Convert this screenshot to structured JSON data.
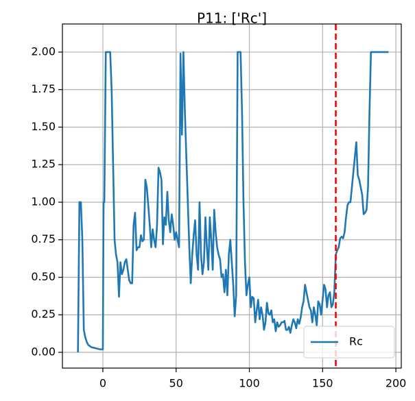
{
  "chart_data": {
    "type": "line",
    "title": "P11: ['Rc']",
    "x": [
      -17,
      -16,
      -15,
      -14,
      -13,
      -12,
      -11,
      -10,
      -8,
      -6,
      -4,
      -2,
      0,
      0.5,
      1,
      2,
      5,
      6,
      7,
      8,
      9,
      10,
      11,
      12,
      13,
      14,
      15,
      16,
      17,
      18,
      19,
      20,
      21,
      22,
      23,
      24,
      25,
      26,
      27,
      28,
      29,
      30,
      31,
      32,
      33,
      34,
      35,
      36,
      37,
      38,
      39,
      40,
      41,
      42,
      43,
      44,
      45,
      46,
      47,
      48,
      49,
      50,
      51,
      52,
      53,
      54,
      55,
      56,
      57,
      58,
      59,
      60,
      61,
      62,
      63,
      64,
      65,
      66,
      67,
      68,
      69,
      70,
      71,
      72,
      73,
      74,
      75,
      76,
      77,
      78,
      79,
      80,
      81,
      82,
      83,
      84,
      85,
      86,
      87,
      88,
      89,
      90,
      91,
      92,
      94,
      95,
      96,
      97,
      98,
      99,
      100,
      101,
      102,
      103,
      104,
      105,
      106,
      107,
      108,
      109,
      110,
      111,
      112,
      113,
      114,
      115,
      116,
      117,
      118,
      119,
      120,
      121,
      122,
      123,
      124,
      125,
      126,
      127,
      128,
      129,
      130,
      131,
      132,
      133,
      134,
      135,
      136,
      137,
      138,
      139,
      140,
      141,
      142,
      143,
      144,
      145,
      146,
      147,
      148,
      149,
      150,
      151,
      152,
      153,
      154,
      155,
      156,
      157,
      158,
      159,
      160,
      161,
      162,
      163,
      164,
      165,
      166,
      167,
      168,
      169,
      170,
      171,
      172,
      173,
      174,
      175,
      176,
      177,
      178,
      179,
      180,
      181,
      182,
      183,
      195
    ],
    "series": [
      {
        "name": "Rc",
        "color": "#1f77b4",
        "values": [
          0,
          1.0,
          1.0,
          0.75,
          0.15,
          0.1,
          0.07,
          0.05,
          0.035,
          0.03,
          0.025,
          0.02,
          0.02,
          1.0,
          1.0,
          2.0,
          2.0,
          1.75,
          1.25,
          0.75,
          0.65,
          0.6,
          0.37,
          0.6,
          0.52,
          0.55,
          0.6,
          0.62,
          0.55,
          0.48,
          0.46,
          0.46,
          0.85,
          0.93,
          0.68,
          0.7,
          0.7,
          0.78,
          0.74,
          0.75,
          1.15,
          1.1,
          0.98,
          0.85,
          0.7,
          0.82,
          0.75,
          0.7,
          0.85,
          1.23,
          1.2,
          1.15,
          0.72,
          0.9,
          0.85,
          1.07,
          0.88,
          0.8,
          0.92,
          0.85,
          0.75,
          0.8,
          0.75,
          0.7,
          1.99,
          1.45,
          2.0,
          1.6,
          1.3,
          1.0,
          0.7,
          0.46,
          0.65,
          0.78,
          0.88,
          0.65,
          0.55,
          1.0,
          0.65,
          0.52,
          0.6,
          0.9,
          0.7,
          0.55,
          0.9,
          0.75,
          0.55,
          0.95,
          0.8,
          0.7,
          0.65,
          0.62,
          0.5,
          0.52,
          0.4,
          0.55,
          0.38,
          0.65,
          0.75,
          0.6,
          0.45,
          0.24,
          0.38,
          2.0,
          2.0,
          1.6,
          1.0,
          0.6,
          0.38,
          0.45,
          0.5,
          0.3,
          0.37,
          0.36,
          0.2,
          0.28,
          0.35,
          0.22,
          0.3,
          0.25,
          0.15,
          0.2,
          0.33,
          0.26,
          0.25,
          0.28,
          0.2,
          0.22,
          0.14,
          0.2,
          0.17,
          0.18,
          0.2,
          0.2,
          0.21,
          0.15,
          0.15,
          0.17,
          0.13,
          0.18,
          0.22,
          0.2,
          0.16,
          0.22,
          0.19,
          0.23,
          0.3,
          0.34,
          0.45,
          0.4,
          0.35,
          0.3,
          0.28,
          0.2,
          0.3,
          0.25,
          0.18,
          0.34,
          0.32,
          0.25,
          0.35,
          0.45,
          0.42,
          0.3,
          0.38,
          0.4,
          0.3,
          0.32,
          0.4,
          0.65,
          0.68,
          0.7,
          0.76,
          0.77,
          0.76,
          0.8,
          0.9,
          0.98,
          1.0,
          1.0,
          1.1,
          1.2,
          1.3,
          1.4,
          1.18,
          1.15,
          1.1,
          1.05,
          0.92,
          0.93,
          0.95,
          1.1,
          1.6,
          2.0,
          2.0
        ]
      }
    ],
    "vline": 159,
    "vline_color": "#ff0000",
    "xlim": [
      -27.6,
      203.7
    ],
    "ylim": [
      -0.105,
      2.187
    ],
    "xticks": [
      0,
      50,
      100,
      150,
      200
    ],
    "yticks": [
      {
        "value": 0,
        "label": "0.00"
      },
      {
        "value": 0.25,
        "label": "0.25"
      },
      {
        "value": 0.5,
        "label": "0.50"
      },
      {
        "value": 0.75,
        "label": "0.75"
      },
      {
        "value": 1,
        "label": "1.00"
      },
      {
        "value": 1.25,
        "label": "1.25"
      },
      {
        "value": 1.5,
        "label": "1.50"
      },
      {
        "value": 1.75,
        "label": "1.75"
      },
      {
        "value": 2,
        "label": "2.00"
      }
    ],
    "grid": true,
    "legend": "lower right"
  }
}
